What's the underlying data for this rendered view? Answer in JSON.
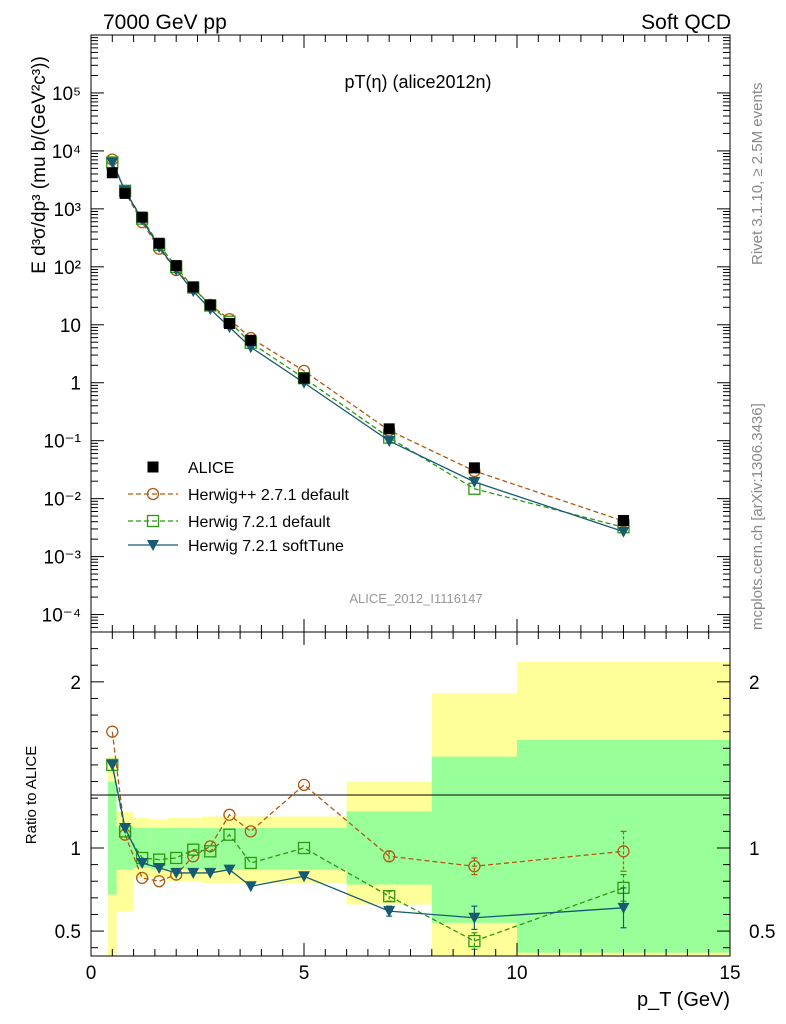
{
  "header": {
    "left": "7000 GeV pp",
    "right": "Soft QCD"
  },
  "side_labels": {
    "rivet": "Rivet 3.1.10, ≥ 2.5M events",
    "mcplots": "mcplots.cern.ch [arXiv:1306.3436]"
  },
  "colors": {
    "data": "#000000",
    "herwigpp": "#b05a12",
    "herwig721": "#2a9a10",
    "softtune": "#175a72",
    "band_yellow": "#ffff99",
    "band_green": "#99ff99"
  },
  "chart_data": [
    {
      "type": "scatter",
      "title": "pT(η) (alice2012n)",
      "watermark": "ALICE_2012_I1116147",
      "ylabel": "E d³σ/dp³ (mu b/(GeV²c³))",
      "yscale": "log",
      "xlim": [
        0,
        15
      ],
      "ylim": [
        5e-05,
        1000000
      ],
      "y_tick_labels": [
        "10⁻⁴",
        "10⁻³",
        "10⁻²",
        "10⁻¹",
        "1",
        "10",
        "10²",
        "10³",
        "10⁴",
        "10⁵"
      ],
      "legend_position": "lower-left",
      "series": [
        {
          "name": "ALICE",
          "marker": "square-filled",
          "x": [
            0.5,
            0.8,
            1.2,
            1.6,
            2.0,
            2.4,
            2.8,
            3.25,
            3.75,
            5.0,
            7.0,
            9.0,
            12.5
          ],
          "y": [
            4200,
            1850,
            720,
            255,
            105,
            45,
            22,
            10.5,
            5.4,
            1.2,
            0.16,
            0.034,
            0.0042
          ]
        },
        {
          "name": "Herwig++ 2.7.1 default",
          "marker": "circle-open",
          "line": "dashed",
          "x": [
            0.5,
            0.8,
            1.2,
            1.6,
            2.0,
            2.4,
            2.8,
            3.25,
            3.75,
            5.0,
            7.0,
            9.0,
            12.5
          ],
          "y": [
            7100,
            1950,
            590,
            205,
            88,
            43,
            22,
            12.5,
            5.9,
            1.6,
            0.15,
            0.03,
            0.0041
          ]
        },
        {
          "name": "Herwig 7.2.1 default",
          "marker": "square-open",
          "line": "dashed",
          "x": [
            0.5,
            0.8,
            1.2,
            1.6,
            2.0,
            2.4,
            2.8,
            3.25,
            3.75,
            5.0,
            7.0,
            9.0,
            12.5
          ],
          "y": [
            6300,
            2050,
            680,
            240,
            99,
            44,
            21.5,
            11.3,
            4.9,
            1.2,
            0.113,
            0.0148,
            0.0032
          ]
        },
        {
          "name": "Herwig 7.2.1 softTune",
          "marker": "triangle-down-filled",
          "line": "solid",
          "x": [
            0.5,
            0.8,
            1.2,
            1.6,
            2.0,
            2.4,
            2.8,
            3.25,
            3.75,
            5.0,
            7.0,
            9.0,
            12.5
          ],
          "y": [
            6300,
            2050,
            650,
            220,
            88,
            38,
            18.6,
            9.1,
            4.1,
            1.0,
            0.099,
            0.0195,
            0.0027
          ]
        }
      ]
    },
    {
      "type": "line",
      "ylabel": "Ratio to ALICE",
      "xlabel": "p_T (GeV)",
      "xlim": [
        0,
        15
      ],
      "ylim": [
        0.35,
        2.3
      ],
      "x_ticks": [
        0,
        5,
        10,
        15
      ],
      "y_ticks": [
        0.5,
        1,
        2
      ],
      "reference_line": 1,
      "bins": [
        {
          "x0": 0.4,
          "x1": 0.6,
          "green": [
            0.72,
            1.4
          ],
          "yellow": [
            0.28,
            1.55
          ]
        },
        {
          "x0": 0.6,
          "x1": 1.0,
          "green": [
            0.87,
            1.13
          ],
          "yellow": [
            0.62,
            1.22
          ]
        },
        {
          "x0": 1.0,
          "x1": 1.4,
          "green": [
            0.88,
            1.12
          ],
          "yellow": [
            0.82,
            1.18
          ]
        },
        {
          "x0": 1.4,
          "x1": 1.8,
          "green": [
            0.87,
            1.12
          ],
          "yellow": [
            0.82,
            1.17
          ]
        },
        {
          "x0": 1.8,
          "x1": 2.2,
          "green": [
            0.87,
            1.12
          ],
          "yellow": [
            0.8,
            1.18
          ]
        },
        {
          "x0": 2.2,
          "x1": 2.6,
          "green": [
            0.87,
            1.12
          ],
          "yellow": [
            0.8,
            1.18
          ]
        },
        {
          "x0": 2.6,
          "x1": 3.0,
          "green": [
            0.87,
            1.12
          ],
          "yellow": [
            0.79,
            1.19
          ]
        },
        {
          "x0": 3.0,
          "x1": 3.5,
          "green": [
            0.87,
            1.12
          ],
          "yellow": [
            0.79,
            1.19
          ]
        },
        {
          "x0": 3.5,
          "x1": 4.0,
          "green": [
            0.87,
            1.12
          ],
          "yellow": [
            0.79,
            1.19
          ]
        },
        {
          "x0": 4.0,
          "x1": 6.0,
          "green": [
            0.87,
            1.12
          ],
          "yellow": [
            0.79,
            1.19
          ]
        },
        {
          "x0": 6.0,
          "x1": 8.0,
          "green": [
            0.78,
            1.22
          ],
          "yellow": [
            0.66,
            1.4
          ]
        },
        {
          "x0": 8.0,
          "x1": 10.0,
          "green": [
            0.55,
            1.55
          ],
          "yellow": [
            0.3,
            1.93
          ]
        },
        {
          "x0": 10.0,
          "x1": 15.0,
          "green": [
            0.37,
            1.65
          ],
          "yellow": [
            0.3,
            2.12
          ]
        }
      ],
      "series": [
        {
          "name": "Herwig++ 2.7.1 default",
          "x": [
            0.5,
            0.8,
            1.2,
            1.6,
            2.0,
            2.4,
            2.8,
            3.25,
            3.75,
            5.0,
            7.0,
            9.0,
            12.5
          ],
          "y": [
            1.7,
            1.08,
            0.82,
            0.8,
            0.84,
            0.95,
            1.01,
            1.2,
            1.1,
            1.38,
            0.95,
            0.89,
            0.98
          ],
          "err": [
            0,
            0,
            0,
            0,
            0,
            0,
            0,
            0,
            0,
            0,
            0.03,
            0.05,
            0.12
          ]
        },
        {
          "name": "Herwig 7.2.1 default",
          "x": [
            0.5,
            0.8,
            1.2,
            1.6,
            2.0,
            2.4,
            2.8,
            3.25,
            3.75,
            5.0,
            7.0,
            9.0,
            12.5
          ],
          "y": [
            1.5,
            1.1,
            0.94,
            0.93,
            0.94,
            0.99,
            0.98,
            1.08,
            0.91,
            1.0,
            0.71,
            0.44,
            0.76
          ],
          "err": [
            0,
            0,
            0,
            0,
            0,
            0,
            0,
            0,
            0,
            0,
            0.03,
            0.05,
            0.08
          ]
        },
        {
          "name": "Herwig 7.2.1 softTune",
          "x": [
            0.5,
            0.8,
            1.2,
            1.6,
            2.0,
            2.4,
            2.8,
            3.25,
            3.75,
            5.0,
            7.0,
            9.0,
            12.5
          ],
          "y": [
            1.5,
            1.12,
            0.91,
            0.88,
            0.85,
            0.85,
            0.85,
            0.87,
            0.77,
            0.83,
            0.62,
            0.58,
            0.64
          ],
          "err": [
            0,
            0,
            0,
            0,
            0,
            0,
            0,
            0,
            0,
            0,
            0.03,
            0.07,
            0.12
          ]
        }
      ]
    }
  ]
}
